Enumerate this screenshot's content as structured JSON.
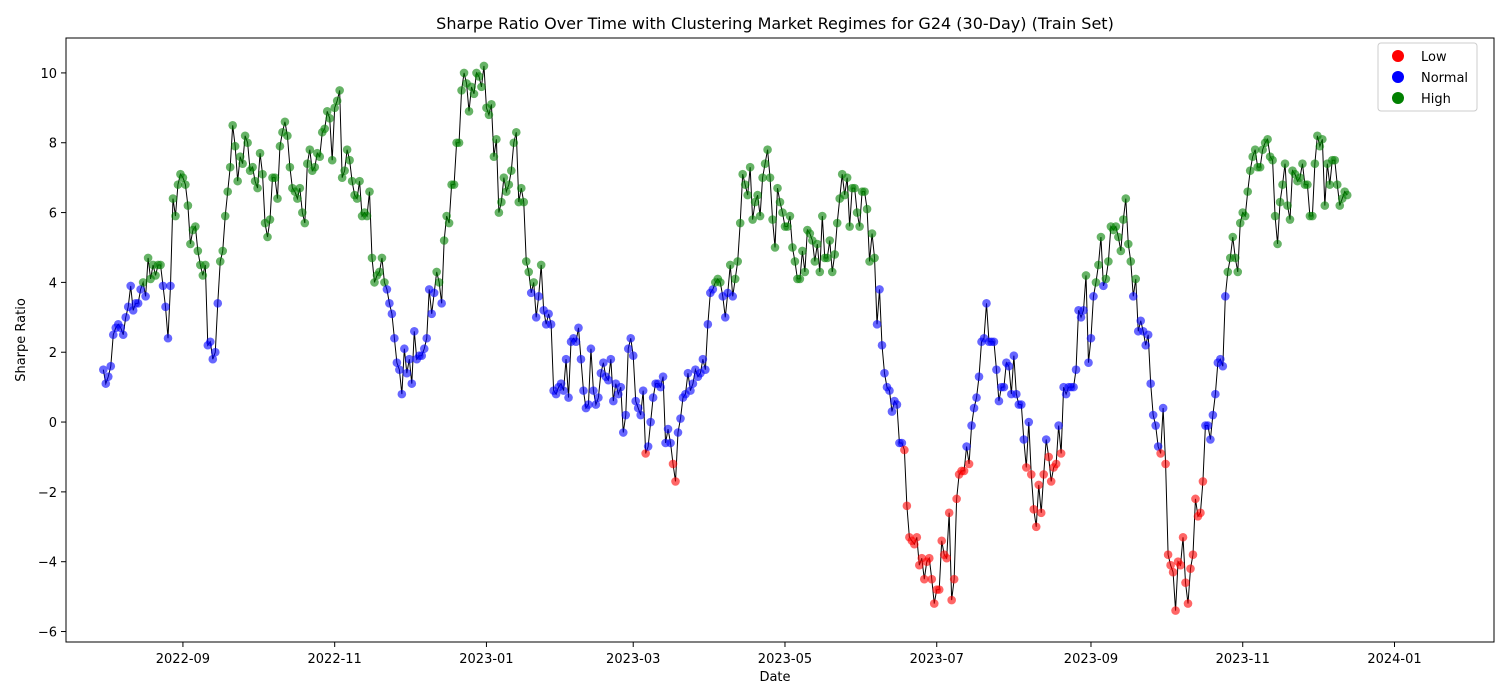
{
  "chart_data": {
    "type": "scatter",
    "title": "Sharpe Ratio Over Time with Clustering Market Regimes for G24 (30-Day) (Train Set)",
    "xlabel": "Date",
    "ylabel": "Sharpe Ratio",
    "xlim": [
      "2022-07-16",
      "2024-02-10"
    ],
    "ylim": [
      -6.3,
      11.0
    ],
    "x_ticks": [
      "2022-09-01",
      "2022-11-01",
      "2023-01-01",
      "2023-03-01",
      "2023-05-01",
      "2023-07-01",
      "2023-09-01",
      "2023-11-01",
      "2024-01-01"
    ],
    "x_tick_labels": [
      "2022-09",
      "2022-11",
      "2023-01",
      "2023-03",
      "2023-05",
      "2023-07",
      "2023-09",
      "2023-11",
      "2024-01"
    ],
    "y_ticks": [
      -6,
      -4,
      -2,
      0,
      2,
      4,
      6,
      8,
      10
    ],
    "grid": false,
    "legend_position": "top-right",
    "line_color": "#000000",
    "regimes": [
      {
        "name": "Low",
        "color": "#ff0000"
      },
      {
        "name": "Normal",
        "color": "#0000ff"
      },
      {
        "name": "High",
        "color": "#008000"
      }
    ],
    "start_date": "2022-07-31",
    "series": [
      {
        "name": "Sharpe Ratio",
        "values": [
          1.5,
          1.1,
          1.3,
          1.6,
          2.5,
          2.7,
          2.8,
          2.7,
          2.5,
          3.0,
          3.3,
          3.9,
          3.2,
          3.4,
          3.4,
          3.8,
          4.0,
          3.6,
          4.7,
          4.1,
          4.5,
          4.2,
          4.5,
          4.5,
          3.9,
          3.3,
          2.4,
          3.9,
          6.4,
          5.9,
          6.8,
          7.1,
          7.0,
          6.8,
          6.2,
          5.1,
          5.5,
          5.6,
          4.9,
          4.5,
          4.2,
          4.5,
          2.2,
          2.3,
          1.8,
          2.0,
          3.4,
          4.6,
          4.9,
          5.9,
          6.6,
          7.3,
          8.5,
          7.9,
          6.9,
          7.6,
          7.4,
          8.2,
          8.0,
          7.2,
          7.3,
          6.9,
          6.7,
          7.7,
          7.1,
          5.7,
          5.3,
          5.8,
          7.0,
          7.0,
          6.4,
          7.9,
          8.3,
          8.6,
          8.2,
          7.3,
          6.7,
          6.6,
          6.4,
          6.7,
          6.0,
          5.7,
          7.4,
          7.8,
          7.2,
          7.3,
          7.7,
          7.6,
          8.3,
          8.4,
          8.9,
          8.7,
          7.5,
          9.0,
          9.2,
          9.5,
          7.0,
          7.2,
          7.8,
          7.5,
          6.9,
          6.5,
          6.4,
          6.9,
          5.9,
          6.0,
          5.9,
          6.6,
          4.7,
          4.0,
          4.2,
          4.3,
          4.7,
          4.0,
          3.8,
          3.4,
          3.1,
          2.4,
          1.7,
          1.5,
          0.8,
          2.1,
          1.4,
          1.8,
          1.1,
          2.6,
          1.8,
          1.9,
          1.9,
          2.1,
          2.4,
          3.8,
          3.1,
          3.7,
          4.3,
          4.0,
          3.4,
          5.2,
          5.9,
          5.7,
          6.8,
          6.8,
          8.0,
          8.0,
          9.5,
          10.0,
          9.7,
          8.9,
          9.6,
          9.4,
          10.0,
          9.9,
          9.6,
          10.2,
          9.0,
          8.8,
          9.1,
          7.6,
          8.1,
          6.0,
          6.3,
          7.0,
          6.6,
          6.8,
          7.2,
          8.0,
          8.3,
          6.3,
          6.7,
          6.3,
          4.6,
          4.3,
          3.7,
          4.0,
          3.0,
          3.6,
          4.5,
          3.2,
          2.8,
          3.1,
          2.8,
          0.9,
          0.8,
          1.0,
          1.1,
          0.9,
          1.8,
          0.7,
          2.3,
          2.4,
          2.3,
          2.7,
          1.8,
          0.9,
          0.4,
          0.5,
          2.1,
          0.9,
          0.5,
          0.7,
          1.4,
          1.7,
          1.3,
          1.2,
          1.8,
          0.6,
          1.1,
          0.8,
          1.0,
          -0.3,
          0.2,
          2.1,
          2.4,
          1.9,
          0.6,
          0.4,
          0.2,
          0.9,
          -0.9,
          -0.7,
          0.0,
          0.7,
          1.1,
          1.1,
          1.0,
          1.3,
          -0.6,
          -0.2,
          -0.6,
          -1.2,
          -1.7,
          -0.3,
          0.1,
          0.7,
          0.8,
          1.4,
          0.9,
          1.1,
          1.5,
          1.3,
          1.4,
          1.8,
          1.5,
          2.8,
          3.7,
          3.8,
          4.0,
          4.1,
          4.0,
          3.6,
          3.0,
          3.7,
          4.5,
          3.6,
          4.1,
          4.6,
          5.7,
          7.1,
          6.8,
          6.5,
          7.3,
          5.8,
          6.3,
          6.5,
          5.9,
          7.0,
          7.4,
          7.8,
          7.0,
          5.8,
          5.0,
          6.7,
          6.3,
          6.0,
          5.6,
          5.6,
          5.9,
          5.0,
          4.6,
          4.1,
          4.1,
          4.9,
          4.3,
          5.5,
          5.4,
          5.2,
          4.6,
          5.1,
          4.3,
          5.9,
          4.7,
          4.7,
          5.2,
          4.3,
          4.8,
          5.7,
          6.4,
          7.1,
          6.5,
          7.0,
          5.6,
          6.7,
          6.7,
          6.0,
          5.6,
          6.6,
          6.6,
          6.1,
          4.6,
          5.4,
          4.7,
          2.8,
          3.8,
          2.2,
          1.4,
          1.0,
          0.9,
          0.3,
          0.6,
          0.5,
          -0.6,
          -0.6,
          -0.8,
          -2.4,
          -3.3,
          -3.4,
          -3.5,
          -3.3,
          -4.1,
          -3.9,
          -4.5,
          -4.0,
          -3.9,
          -4.5,
          -5.2,
          -4.8,
          -4.8,
          -3.4,
          -3.8,
          -3.9,
          -2.6,
          -5.1,
          -4.5,
          -2.2,
          -1.5,
          -1.4,
          -1.4,
          -0.7,
          -1.2,
          -0.1,
          0.4,
          0.7,
          1.3,
          2.3,
          2.4,
          3.4,
          2.3,
          2.3,
          2.3,
          1.5,
          0.6,
          1.0,
          1.0,
          1.7,
          1.6,
          0.8,
          1.9,
          0.8,
          0.5,
          0.5,
          -0.5,
          -1.3,
          0.0,
          -1.5,
          -2.5,
          -3.0,
          -1.8,
          -2.6,
          -1.5,
          -0.5,
          -1.0,
          -1.7,
          -1.3,
          -1.2,
          -0.1,
          -0.9,
          1.0,
          0.8,
          1.0,
          1.0,
          1.0,
          1.5,
          3.2,
          3.0,
          3.2,
          4.2,
          1.7,
          2.4,
          3.6,
          4.0,
          4.5,
          5.3,
          3.9,
          4.1,
          4.6,
          5.6,
          5.5,
          5.6,
          5.3,
          4.9,
          5.8,
          6.4,
          5.1,
          4.6,
          3.6,
          4.1,
          2.6,
          2.9,
          2.6,
          2.2,
          2.5,
          1.1,
          0.2,
          -0.1,
          -0.7,
          -0.9,
          0.4,
          -1.2,
          -3.8,
          -4.1,
          -4.3,
          -5.4,
          -4.0,
          -4.1,
          -3.3,
          -4.6,
          -5.2,
          -4.2,
          -3.8,
          -2.2,
          -2.7,
          -2.6,
          -1.7,
          -0.1,
          -0.1,
          -0.5,
          0.2,
          0.8,
          1.7,
          1.8,
          1.6,
          3.6,
          4.3,
          4.7,
          5.3,
          4.7,
          4.3,
          5.7,
          6.0,
          5.9,
          6.6,
          7.2,
          7.6,
          7.8,
          7.3,
          7.3,
          7.8,
          8.0,
          8.1,
          7.6,
          7.5,
          5.9,
          5.1,
          6.3,
          6.8,
          7.4,
          6.2,
          5.8,
          7.2,
          7.1,
          6.9,
          7.0,
          7.4,
          6.8,
          6.8,
          5.9,
          5.9,
          7.4,
          8.2,
          7.9,
          8.1,
          6.2,
          7.4,
          6.8,
          7.5,
          7.5,
          6.8,
          6.2,
          6.4,
          6.6,
          6.5
        ]
      }
    ]
  }
}
